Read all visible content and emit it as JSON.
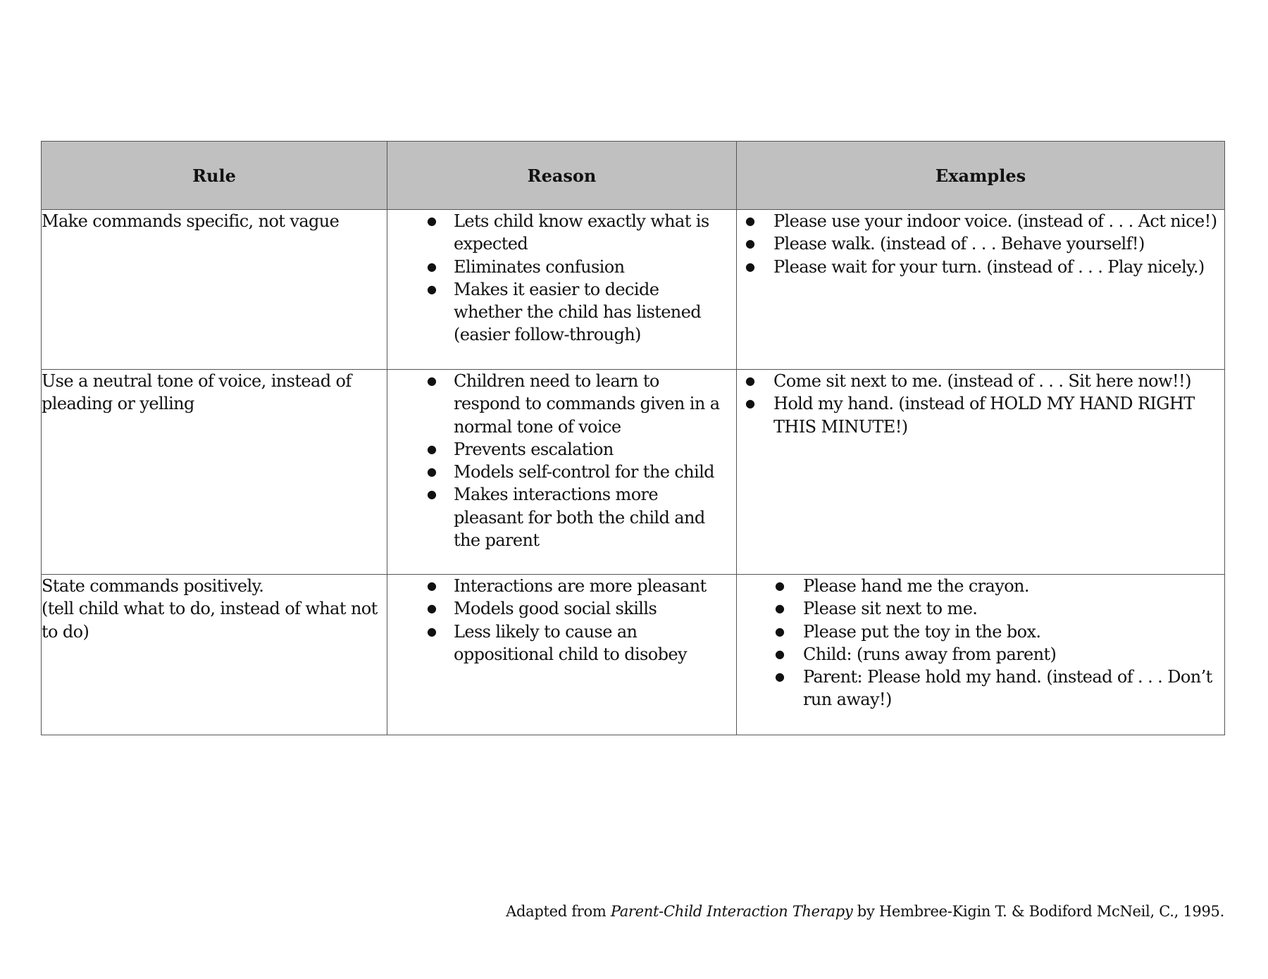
{
  "table": {
    "headers": [
      "Rule",
      "Reason",
      "Examples"
    ],
    "rows": [
      {
        "rule": "Make commands specific, not vague",
        "reasons": [
          "Lets child know exactly what is expected",
          "Eliminates confusion",
          "Makes it easier to decide whether the child has listened (easier follow-through)"
        ],
        "examples": [
          "Please use your indoor voice. (instead of . . . Act nice!)",
          "Please walk. (instead of . . . Behave yourself!)",
          "Please wait for your turn. (instead of . . . Play nicely.)"
        ]
      },
      {
        "rule": "Use a neutral tone of voice, instead of pleading or yelling",
        "reasons": [
          "Children need to learn to respond to commands given in a normal tone of voice",
          "Prevents escalation",
          "Models self-control for the child",
          "Makes interactions more pleasant for both the child and the parent"
        ],
        "examples": [
          "Come sit next to me. (instead of . . . Sit here now!!)",
          "Hold my hand. (instead of HOLD MY HAND RIGHT THIS MINUTE!)"
        ]
      },
      {
        "rule_lines": [
          "State commands positively.",
          "(tell child what to do, instead of what not to do)"
        ],
        "reasons": [
          "Interactions are more pleasant",
          "Models good social skills",
          "Less likely to cause an oppositional child to disobey"
        ],
        "examples": [
          "Please hand me the crayon.",
          "Please sit next to me.",
          "Please put the toy in the box.",
          "Child: (runs away from parent)",
          "Parent: Please hold my hand. (instead of . . . Don’t run away!)"
        ]
      }
    ]
  },
  "footer": {
    "prefix": "Adapted from ",
    "title": "Parent-Child Interaction Therapy",
    "suffix": " by Hembree-Kigin T. & Bodiford McNeil, C., 1995."
  },
  "colors": {
    "header_bg": "#c0c0c0",
    "border": "#555555"
  }
}
